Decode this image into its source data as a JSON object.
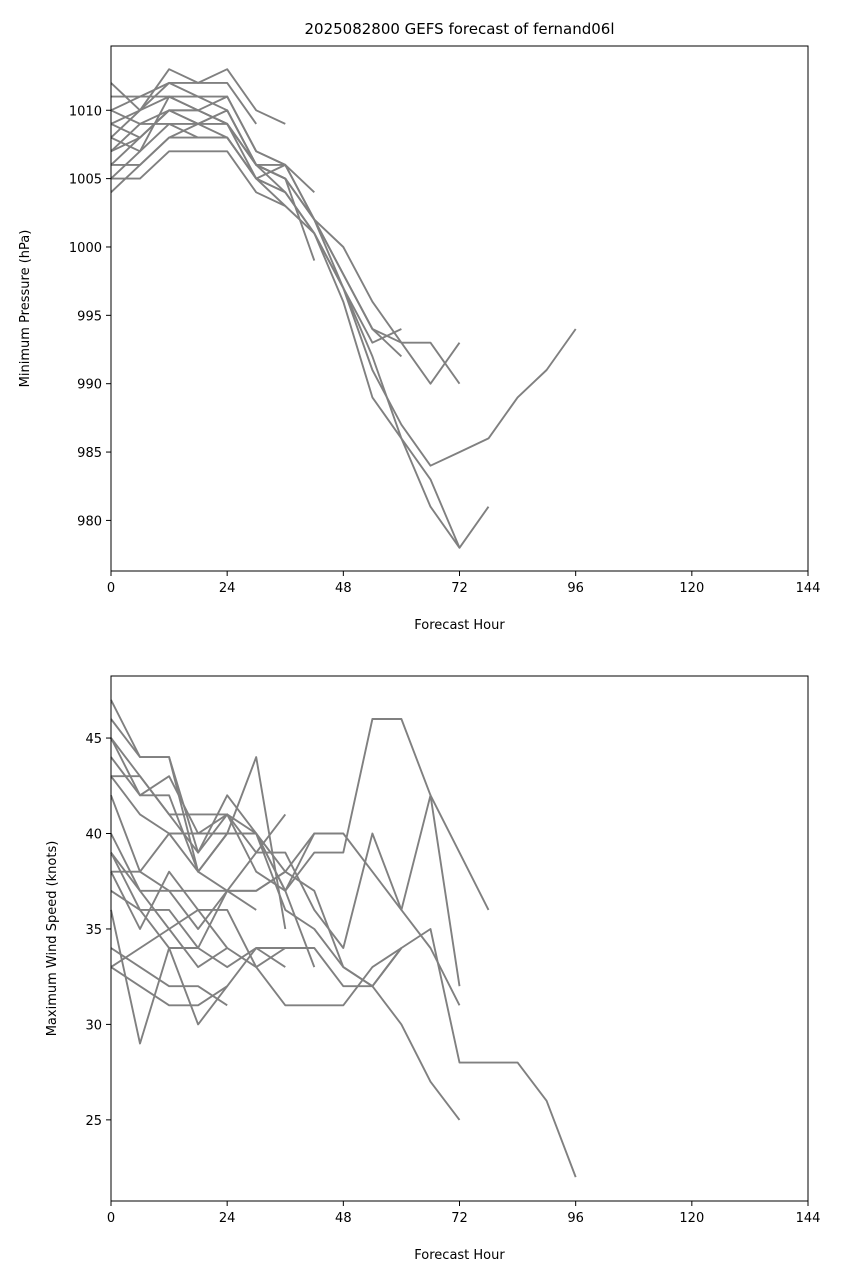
{
  "chart_data": [
    {
      "type": "line",
      "title": "2025082800 GEFS forecast of fernand06l",
      "xlabel": "Forecast Hour",
      "ylabel": "Minimum Pressure (hPa)",
      "xlim": [
        0,
        144
      ],
      "ylim": [
        976.3,
        1014.7
      ],
      "xticks": [
        0,
        24,
        48,
        72,
        96,
        120,
        144
      ],
      "yticks": [
        980,
        985,
        990,
        995,
        1000,
        1005,
        1010
      ],
      "line_color": "#808080",
      "grid": false,
      "legend": "none",
      "series": [
        {
          "x": [
            0,
            6,
            12,
            18,
            24,
            30,
            36
          ],
          "values": [
            1012,
            1010,
            1013,
            1012,
            1013,
            1010,
            1009
          ]
        },
        {
          "x": [
            0,
            6,
            12,
            18,
            24,
            30
          ],
          "values": [
            1011,
            1011,
            1012,
            1012,
            1012,
            1009
          ]
        },
        {
          "x": [
            0,
            6,
            12,
            18,
            24,
            30,
            36,
            42,
            48,
            54,
            60,
            66,
            72
          ],
          "values": [
            1010,
            1011,
            1011,
            1011,
            1011,
            1007,
            1006,
            1002,
            998,
            994,
            993,
            990,
            993
          ]
        },
        {
          "x": [
            0,
            6,
            12,
            18,
            24,
            30,
            36,
            42,
            48,
            54,
            60
          ],
          "values": [
            1009,
            1010,
            1012,
            1011,
            1010,
            1006,
            1006,
            1002,
            997,
            993,
            994
          ]
        },
        {
          "x": [
            0,
            6,
            12,
            18,
            24,
            30,
            36,
            42,
            48,
            54,
            60,
            66,
            72
          ],
          "values": [
            1008,
            1010,
            1011,
            1010,
            1009,
            1006,
            1005,
            1002,
            1000,
            996,
            993,
            993,
            990
          ]
        },
        {
          "x": [
            0,
            6,
            12,
            18,
            24,
            30,
            36,
            42,
            48,
            54,
            60
          ],
          "values": [
            1007,
            1009,
            1010,
            1010,
            1009,
            1006,
            1005,
            1002,
            998,
            994,
            992
          ]
        },
        {
          "x": [
            0,
            6,
            12,
            18,
            24,
            30,
            36,
            42,
            48,
            54,
            60,
            66,
            72,
            78,
            84,
            90,
            96
          ],
          "values": [
            1006,
            1008,
            1010,
            1009,
            1010,
            1006,
            1004,
            1001,
            997,
            991,
            987,
            984,
            985,
            986,
            989,
            991,
            994
          ]
        },
        {
          "x": [
            0,
            6,
            12,
            18,
            24,
            30,
            36,
            42,
            48,
            54,
            60,
            66,
            72,
            78
          ],
          "values": [
            1005,
            1007,
            1009,
            1009,
            1009,
            1005,
            1003,
            1001,
            997,
            992,
            986,
            981,
            978,
            981
          ]
        },
        {
          "x": [
            0,
            6,
            12,
            18,
            24,
            30,
            36,
            42,
            48,
            54,
            60,
            66,
            72
          ],
          "values": [
            1004,
            1006,
            1008,
            1009,
            1008,
            1005,
            1004,
            1001,
            996,
            989,
            986,
            983,
            978
          ]
        },
        {
          "x": [
            0,
            6,
            12,
            18,
            24,
            30,
            36,
            42
          ],
          "values": [
            1007,
            1008,
            1010,
            1009,
            1010,
            1006,
            1005,
            999
          ]
        },
        {
          "x": [
            0,
            6,
            12,
            18,
            24,
            30,
            36,
            42
          ],
          "values": [
            1006,
            1006,
            1008,
            1008,
            1008,
            1005,
            1006,
            1004
          ]
        },
        {
          "x": [
            0,
            6,
            12,
            18,
            24,
            30,
            36
          ],
          "values": [
            1005,
            1005,
            1007,
            1007,
            1007,
            1004,
            1003
          ]
        },
        {
          "x": [
            0,
            6,
            12,
            18,
            24,
            30,
            36
          ],
          "values": [
            1009,
            1008,
            1010,
            1010,
            1011,
            1007,
            1006
          ]
        },
        {
          "x": [
            0,
            6,
            12,
            18,
            24,
            30,
            36
          ],
          "values": [
            1010,
            1009,
            1009,
            1008,
            1008,
            1005,
            1004
          ]
        },
        {
          "x": [
            0,
            6,
            12,
            18,
            24,
            30,
            36
          ],
          "values": [
            1008,
            1007,
            1011,
            1010,
            1009,
            1006,
            1005
          ]
        }
      ]
    },
    {
      "type": "line",
      "title": "",
      "xlabel": "Forecast Hour",
      "ylabel": "Maximum Wind Speed (knots)",
      "xlim": [
        0,
        144
      ],
      "ylim": [
        20.75,
        48.25
      ],
      "xticks": [
        0,
        24,
        48,
        72,
        96,
        120,
        144
      ],
      "yticks": [
        25,
        30,
        35,
        40,
        45
      ],
      "line_color": "#808080",
      "grid": false,
      "legend": "none",
      "series": [
        {
          "x": [
            0,
            6,
            12,
            18,
            24,
            30,
            36
          ],
          "values": [
            47,
            44,
            44,
            39,
            41,
            39,
            41
          ]
        },
        {
          "x": [
            0,
            6,
            12,
            18,
            24,
            30,
            36
          ],
          "values": [
            46,
            44,
            44,
            38,
            40,
            44,
            35
          ]
        },
        {
          "x": [
            0,
            6,
            12,
            18,
            24,
            30,
            36
          ],
          "values": [
            45,
            43,
            41,
            41,
            41,
            40,
            38
          ]
        },
        {
          "x": [
            0,
            6,
            12,
            18,
            24,
            30,
            36,
            42,
            48,
            54,
            60,
            66,
            72
          ],
          "values": [
            45,
            42,
            42,
            38,
            40,
            40,
            37,
            40,
            40,
            38,
            36,
            42,
            32
          ]
        },
        {
          "x": [
            0,
            6,
            12,
            18,
            24,
            30,
            36,
            42,
            48,
            54,
            60,
            66,
            72,
            78
          ],
          "values": [
            44,
            42,
            43,
            40,
            41,
            38,
            37,
            39,
            39,
            46,
            46,
            42,
            39,
            36
          ]
        },
        {
          "x": [
            0,
            6,
            12,
            18,
            24,
            30,
            36,
            42,
            48,
            54,
            60,
            66,
            72
          ],
          "values": [
            43,
            41,
            40,
            38,
            37,
            39,
            39,
            36,
            34,
            40,
            36,
            34,
            31
          ]
        },
        {
          "x": [
            0,
            6,
            12,
            18,
            24,
            30,
            36,
            42,
            48,
            54,
            60,
            66,
            72
          ],
          "values": [
            43,
            43,
            41,
            39,
            42,
            40,
            36,
            35,
            33,
            32,
            30,
            27,
            25
          ]
        },
        {
          "x": [
            0,
            6,
            12,
            18,
            24,
            30,
            36,
            42
          ],
          "values": [
            42,
            38,
            40,
            40,
            40,
            40,
            37,
            33
          ]
        },
        {
          "x": [
            0,
            6,
            12,
            18,
            24,
            30,
            36,
            42,
            48,
            54,
            60,
            66,
            72,
            78,
            84,
            90,
            96
          ],
          "values": [
            40,
            37,
            37,
            35,
            37,
            37,
            38,
            37,
            33,
            32,
            34,
            35,
            28,
            28,
            28,
            26,
            22
          ]
        },
        {
          "x": [
            0,
            6,
            12,
            18,
            24,
            30,
            36
          ],
          "values": [
            39,
            36,
            36,
            34,
            33,
            34,
            33
          ]
        },
        {
          "x": [
            0,
            6,
            12,
            18,
            24,
            30,
            36
          ],
          "values": [
            38,
            35,
            38,
            36,
            36,
            33,
            34
          ]
        },
        {
          "x": [
            0,
            6,
            12,
            18,
            24,
            30
          ],
          "values": [
            37,
            36,
            34,
            34,
            37,
            36
          ]
        },
        {
          "x": [
            0,
            6,
            12,
            18,
            24
          ],
          "values": [
            36,
            29,
            34,
            30,
            32
          ]
        },
        {
          "x": [
            0,
            6,
            12,
            18,
            24
          ],
          "values": [
            34,
            33,
            32,
            32,
            31
          ]
        },
        {
          "x": [
            0,
            6,
            12,
            18,
            24,
            30,
            36,
            42,
            48,
            54,
            60
          ],
          "values": [
            33,
            32,
            31,
            31,
            32,
            34,
            34,
            34,
            32,
            32,
            34
          ]
        },
        {
          "x": [
            0,
            12,
            18,
            24,
            30,
            36,
            42,
            48,
            54,
            60
          ],
          "values": [
            33,
            35,
            36,
            34,
            33,
            31,
            31,
            31,
            33,
            34
          ]
        },
        {
          "x": [
            0,
            6,
            12,
            18,
            24
          ],
          "values": [
            39,
            37,
            35,
            33,
            34
          ]
        },
        {
          "x": [
            0,
            6,
            12,
            18,
            24,
            30,
            36,
            42,
            48
          ],
          "values": [
            38,
            38,
            37,
            37,
            37,
            37,
            38,
            40,
            40
          ]
        }
      ]
    }
  ]
}
